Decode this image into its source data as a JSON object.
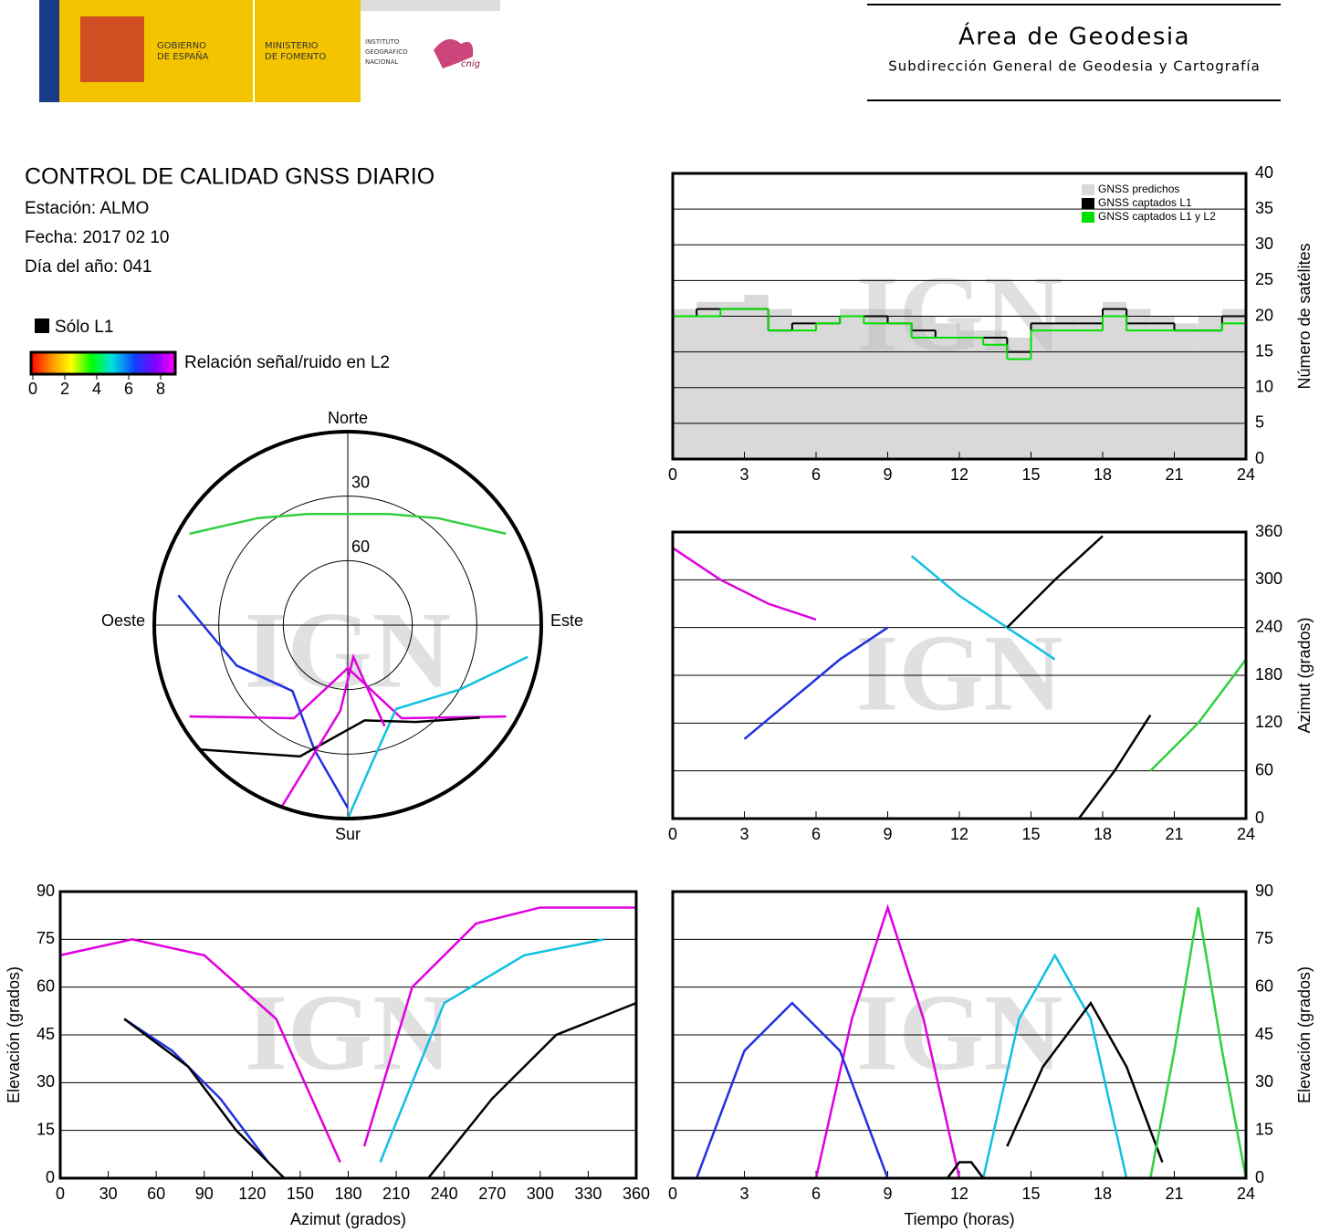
{
  "header": {
    "gov": [
      "GOBIERNO",
      "DE ESPAÑA"
    ],
    "ministry": [
      "MINISTERIO",
      "DE FOMENTO"
    ],
    "institute": [
      "INSTITUTO",
      "GEOGRÁFICO",
      "NACIONAL"
    ],
    "cnig": "cnig",
    "title": "Área de Geodesia",
    "subtitle": "Subdirección General de Geodesia y Cartografía"
  },
  "info": {
    "title": "CONTROL DE CALIDAD GNSS DIARIO",
    "station": "Estación: ALMO",
    "date": "Fecha: 2017 02 10",
    "doy": "Día del año: 041"
  },
  "legend": {
    "l1": "Sólo L1",
    "l1_color": "#000000",
    "colorbar": "Relación señal/ruido en L2",
    "range": [
      0,
      8
    ],
    "ticks": [
      0,
      2,
      4,
      6,
      8
    ]
  },
  "chart_data": [
    {
      "type": "polar",
      "directions": {
        "north": "Norte",
        "south": "Sur",
        "east": "Este",
        "west": "Oeste"
      },
      "rlim": [
        0,
        90
      ],
      "rticks": [
        30,
        60
      ],
      "watermark": "IGN",
      "series": [
        {
          "color": "#e000e0",
          "x": [
            240,
            210,
            180,
            150,
            120
          ],
          "values": [
            5,
            40,
            70,
            40,
            5
          ]
        },
        {
          "color": "#2030e0",
          "x": [
            280,
            250,
            220,
            195,
            180
          ],
          "values": [
            10,
            35,
            50,
            30,
            5
          ]
        },
        {
          "color": "#10c0e0",
          "x": [
            100,
            120,
            150,
            170,
            180
          ],
          "values": [
            5,
            30,
            45,
            25,
            0
          ]
        },
        {
          "color": "#30d040",
          "x": [
            300,
            320,
            340,
            20,
            40,
            60
          ],
          "values": [
            5,
            25,
            35,
            35,
            25,
            5
          ]
        },
        {
          "color": "#000000",
          "x": [
            230,
            200,
            170,
            145,
            125
          ],
          "values": [
            0,
            25,
            45,
            35,
            15
          ]
        },
        {
          "color": "#e000e0",
          "x": [
            200,
            185,
            170,
            160
          ],
          "values": [
            0,
            50,
            75,
            40
          ]
        }
      ]
    },
    {
      "type": "step",
      "xlim": [
        0,
        24
      ],
      "xticks": [
        0,
        3,
        6,
        9,
        12,
        15,
        18,
        21,
        24
      ],
      "ylim": [
        0,
        40
      ],
      "yticks": [
        0,
        5,
        10,
        15,
        20,
        25,
        30,
        35,
        40
      ],
      "ylabel": "Número de satélites",
      "yaxis_side": "right",
      "grid": true,
      "legend": "top-right",
      "watermark": "IGN",
      "x": [
        0,
        1,
        2,
        3,
        4,
        5,
        6,
        7,
        8,
        9,
        10,
        11,
        12,
        13,
        14,
        15,
        16,
        17,
        18,
        19,
        20,
        21,
        22,
        23,
        24
      ],
      "series": [
        {
          "name": "GNSS predichos",
          "color": "#d9d9d9",
          "fill": true,
          "values": [
            21,
            22,
            22,
            23,
            21,
            20,
            20,
            21,
            21,
            21,
            20,
            19,
            18,
            18,
            17,
            19,
            20,
            20,
            22,
            21,
            20,
            19,
            20,
            21,
            21
          ]
        },
        {
          "name": "GNSS captados L1",
          "color": "#000000",
          "values": [
            20,
            21,
            21,
            21,
            18,
            19,
            19,
            20,
            20,
            19,
            18,
            17,
            17,
            17,
            15,
            19,
            19,
            19,
            21,
            19,
            19,
            18,
            18,
            20,
            20
          ]
        },
        {
          "name": "GNSS captados L1 y L2",
          "color": "#00e000",
          "values": [
            20,
            20,
            21,
            21,
            18,
            18,
            19,
            20,
            19,
            19,
            17,
            17,
            17,
            16,
            14,
            18,
            18,
            18,
            20,
            18,
            18,
            18,
            18,
            19,
            20
          ]
        }
      ]
    },
    {
      "type": "line",
      "xlim": [
        0,
        24
      ],
      "xticks": [
        0,
        3,
        6,
        9,
        12,
        15,
        18,
        21,
        24
      ],
      "ylim": [
        0,
        360
      ],
      "yticks": [
        0,
        60,
        120,
        180,
        240,
        300,
        360
      ],
      "ylabel": "Azimut (grados)",
      "yaxis_side": "right",
      "grid": true,
      "watermark": "IGN",
      "series": [
        {
          "color": "#e000e0",
          "x": [
            0,
            2,
            4,
            6
          ],
          "values": [
            340,
            300,
            270,
            250
          ]
        },
        {
          "color": "#2030e0",
          "x": [
            3,
            5,
            7,
            9
          ],
          "values": [
            100,
            150,
            200,
            240
          ]
        },
        {
          "color": "#10c0e0",
          "x": [
            10,
            12,
            14,
            16
          ],
          "values": [
            330,
            280,
            240,
            200
          ]
        },
        {
          "color": "#000000",
          "x": [
            17,
            18.5,
            20
          ],
          "values": [
            0,
            60,
            130
          ]
        },
        {
          "color": "#000000",
          "x": [
            14,
            16,
            18
          ],
          "values": [
            240,
            300,
            355
          ]
        },
        {
          "color": "#30d040",
          "x": [
            20,
            22,
            24
          ],
          "values": [
            60,
            120,
            200
          ]
        }
      ]
    },
    {
      "type": "line",
      "xlim": [
        0,
        360
      ],
      "xticks": [
        0,
        30,
        60,
        90,
        120,
        150,
        180,
        210,
        240,
        270,
        300,
        330,
        360
      ],
      "ylim": [
        0,
        90
      ],
      "yticks": [
        0,
        15,
        30,
        45,
        60,
        75,
        90
      ],
      "xlabel": "Azimut (grados)",
      "ylabel": "Elevación (grados)",
      "yaxis_side": "left",
      "grid": true,
      "watermark": "IGN",
      "series": [
        {
          "color": "#e000e0",
          "x": [
            0,
            45,
            90,
            135,
            175
          ],
          "values": [
            70,
            75,
            70,
            50,
            5
          ]
        },
        {
          "color": "#2030e0",
          "x": [
            40,
            70,
            100,
            130
          ],
          "values": [
            50,
            40,
            25,
            5
          ]
        },
        {
          "color": "#000000",
          "x": [
            40,
            80,
            110,
            140
          ],
          "values": [
            50,
            35,
            15,
            0
          ]
        },
        {
          "color": "#000000",
          "x": [
            230,
            270,
            310,
            360
          ],
          "values": [
            0,
            25,
            45,
            55
          ]
        },
        {
          "color": "#10c0e0",
          "x": [
            200,
            240,
            290,
            340
          ],
          "values": [
            5,
            55,
            70,
            75
          ]
        },
        {
          "color": "#e000e0",
          "x": [
            190,
            220,
            260,
            300,
            360
          ],
          "values": [
            10,
            60,
            80,
            85,
            85
          ]
        }
      ]
    },
    {
      "type": "line",
      "xlim": [
        0,
        24
      ],
      "xticks": [
        0,
        3,
        6,
        9,
        12,
        15,
        18,
        21,
        24
      ],
      "ylim": [
        0,
        90
      ],
      "yticks": [
        0,
        15,
        30,
        45,
        60,
        75,
        90
      ],
      "xlabel": "Tiempo (horas)",
      "ylabel": "Elevación (grados)",
      "yaxis_side": "right",
      "grid": true,
      "watermark": "IGN",
      "series": [
        {
          "color": "#e000e0",
          "x": [
            6,
            7.5,
            9,
            10.5,
            12
          ],
          "values": [
            0,
            50,
            85,
            50,
            0
          ]
        },
        {
          "color": "#2030e0",
          "x": [
            1,
            3,
            5,
            7,
            9
          ],
          "values": [
            0,
            40,
            55,
            40,
            0
          ]
        },
        {
          "color": "#10c0e0",
          "x": [
            13,
            14.5,
            16,
            17.5,
            19
          ],
          "values": [
            0,
            50,
            70,
            50,
            0
          ]
        },
        {
          "color": "#000000",
          "x": [
            14,
            15.5,
            17.5,
            19,
            20.5
          ],
          "values": [
            10,
            35,
            55,
            35,
            5
          ]
        },
        {
          "color": "#30d040",
          "x": [
            20,
            21,
            22,
            23,
            24
          ],
          "values": [
            0,
            40,
            85,
            40,
            0
          ]
        },
        {
          "color": "#000000",
          "x": [
            11.5,
            12,
            12.5,
            13
          ],
          "values": [
            0,
            5,
            5,
            0
          ]
        }
      ]
    }
  ]
}
